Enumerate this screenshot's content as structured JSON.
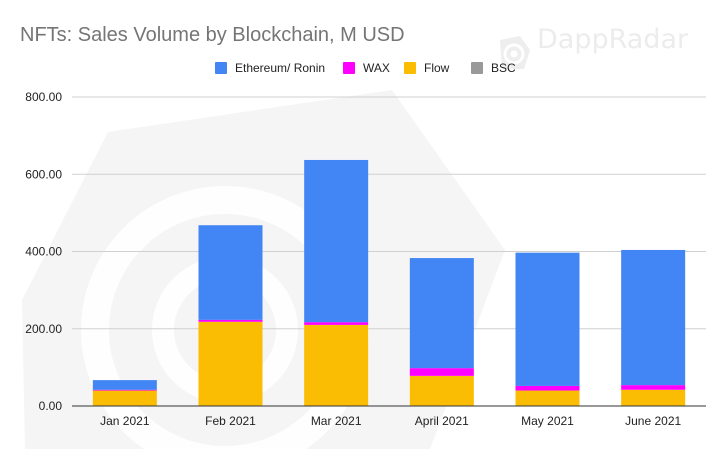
{
  "watermark": {
    "brand": "DappRadar",
    "logo_icon": "dappradar-logo-icon"
  },
  "chart_data": {
    "type": "bar",
    "stacked": true,
    "title": "NFTs: Sales Volume by Blockchain, M USD",
    "xlabel": "",
    "ylabel": "",
    "categories": [
      "Jan 2021",
      "Feb 2021",
      "Mar 2021",
      "April 2021",
      "May 2021",
      "June 2021"
    ],
    "ylim": [
      0,
      800
    ],
    "yticks": [
      {
        "value": 0,
        "label": "0.00"
      },
      {
        "value": 200,
        "label": "200.00"
      },
      {
        "value": 400,
        "label": "400.00"
      },
      {
        "value": 600,
        "label": "600.00"
      },
      {
        "value": 800,
        "label": "800.00"
      }
    ],
    "grid": true,
    "legend_position": "top-center",
    "stack_order": [
      "Flow",
      "WAX",
      "Ethereum/ Ronin",
      "BSC"
    ],
    "series": [
      {
        "name": "Ethereum/ Ronin",
        "color": "#4285f4",
        "values": [
          25,
          245,
          420,
          285,
          345,
          350
        ]
      },
      {
        "name": "WAX",
        "color": "#ff00ff",
        "values": [
          2,
          5,
          7,
          20,
          12,
          12
        ]
      },
      {
        "name": "Flow",
        "color": "#fbbc04",
        "values": [
          40,
          218,
          210,
          78,
          40,
          42
        ]
      },
      {
        "name": "BSC",
        "color": "#999999",
        "values": [
          0,
          0,
          0,
          0,
          0,
          0
        ]
      }
    ]
  }
}
